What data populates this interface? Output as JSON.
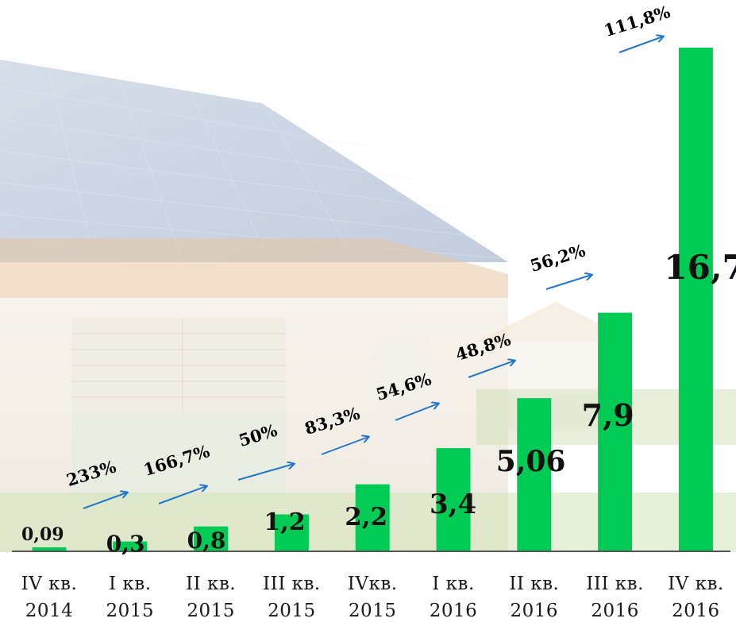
{
  "chart_data": {
    "type": "bar",
    "categories": [
      "IV кв.\n2014",
      "I кв.\n2015",
      "II кв.\n2015",
      "III кв.\n2015",
      "IVкв.\n2015",
      "I кв.\n2016",
      "II кв.\n2016",
      "III кв.\n2016",
      "IV кв.\n2016"
    ],
    "values": [
      0.09,
      0.3,
      0.8,
      1.2,
      2.2,
      3.4,
      5.06,
      7.9,
      16.7
    ],
    "value_labels": [
      "0,09",
      "0,3",
      "0,8",
      "1,2",
      "2,2",
      "3,4",
      "5,06",
      "7,9",
      "16,7"
    ],
    "growth_labels": [
      "233%",
      "166,7%",
      "50%",
      "83,3%",
      "54,6%",
      "48,8%",
      "56,2%",
      "111,8%"
    ],
    "ylim": [
      0,
      16.7
    ],
    "bar_color": "#00cc55",
    "arrow_color": "#2277cc",
    "grid": false,
    "title": "",
    "xlabel": "",
    "ylabel": ""
  }
}
